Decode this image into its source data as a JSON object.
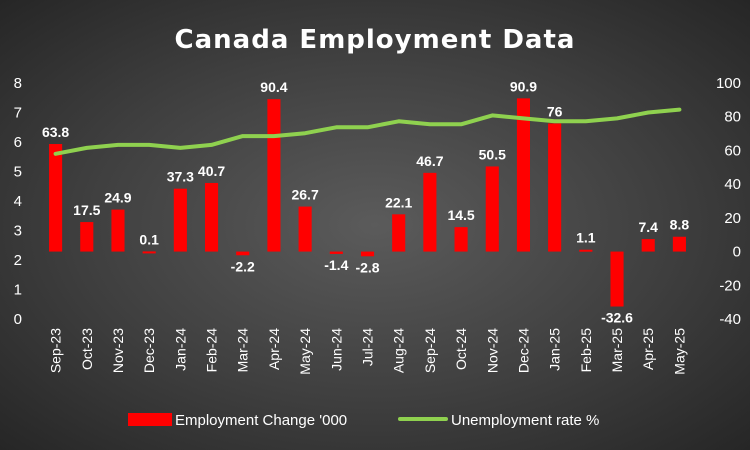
{
  "chart_data": {
    "type": "bar",
    "title": "Canada Employment Data",
    "categories": [
      "Sep-23",
      "Oct-23",
      "Nov-23",
      "Dec-23",
      "Jan-24",
      "Feb-24",
      "Mar-24",
      "Apr-24",
      "May-24",
      "Jun-24",
      "Jul-24",
      "Aug-24",
      "Sep-24",
      "Oct-24",
      "Nov-24",
      "Dec-24",
      "Jan-25",
      "Feb-25",
      "Mar-25",
      "Apr-25",
      "May-25"
    ],
    "series": [
      {
        "name": "Employment Change '000",
        "type": "bar",
        "axis": "secondary",
        "color": "#ff0000",
        "values": [
          63.8,
          17.5,
          24.9,
          0.1,
          37.3,
          40.7,
          -2.2,
          90.4,
          26.7,
          -1.4,
          -2.8,
          22.1,
          46.7,
          14.5,
          50.5,
          90.9,
          76,
          1.1,
          -32.6,
          7.4,
          8.8
        ]
      },
      {
        "name": "Unemployment rate %",
        "type": "line",
        "axis": "primary",
        "color": "#8fd14f",
        "values": [
          5.6,
          5.8,
          5.9,
          5.9,
          5.8,
          5.9,
          6.2,
          6.2,
          6.3,
          6.5,
          6.5,
          6.7,
          6.6,
          6.6,
          6.9,
          6.8,
          6.7,
          6.7,
          6.8,
          7.0,
          7.1
        ]
      }
    ],
    "y_left": {
      "min": 0,
      "max": 8,
      "ticks": [
        0,
        1,
        2,
        3,
        4,
        5,
        6,
        7,
        8
      ]
    },
    "y_right": {
      "min": -40,
      "max": 100,
      "ticks": [
        -40,
        -20,
        0,
        20,
        40,
        60,
        80,
        100
      ]
    },
    "grid": false,
    "legend": "bottom"
  }
}
